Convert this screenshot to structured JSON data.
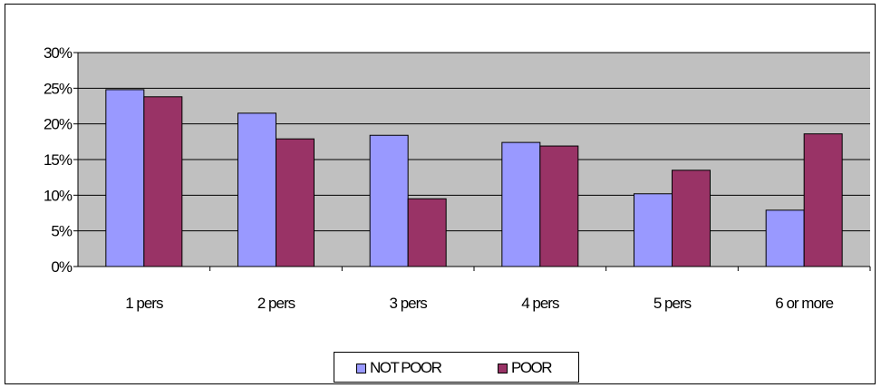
{
  "chart_data": {
    "type": "bar",
    "categories": [
      "1 pers",
      "2 pers",
      "3 pers",
      "4 pers",
      "5 pers",
      "6 or more"
    ],
    "series": [
      {
        "name": "NOT POOR",
        "values": [
          24.8,
          21.5,
          18.4,
          17.4,
          10.2,
          7.9
        ],
        "color": "#9999ff"
      },
      {
        "name": "POOR",
        "values": [
          23.8,
          17.9,
          9.5,
          16.9,
          13.5,
          18.6
        ],
        "color": "#993366"
      }
    ],
    "ylim": [
      0,
      30
    ],
    "yticks": [
      "0%",
      "5%",
      "10%",
      "15%",
      "20%",
      "25%",
      "30%"
    ],
    "grid": true,
    "plot_background": "#c0c0c0",
    "legend_position": "bottom"
  }
}
